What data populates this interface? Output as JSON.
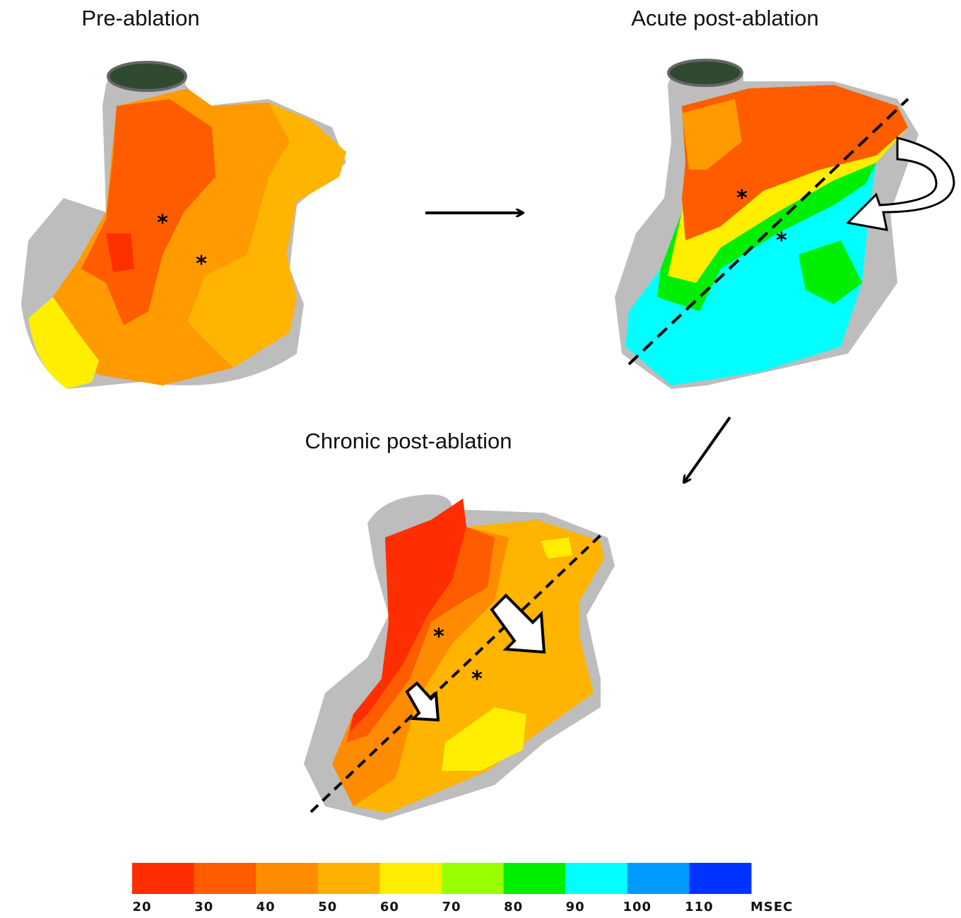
{
  "panels": [
    {
      "title": "Pre-ablation",
      "markers": [
        "*",
        "*"
      ]
    },
    {
      "title": "Acute post-ablation",
      "markers": [
        "*",
        "*"
      ]
    },
    {
      "title": "Chronic post-ablation",
      "markers": [
        "*",
        "*"
      ]
    }
  ],
  "colorbar": {
    "colors": [
      "#ff2e00",
      "#ff5c00",
      "#ff8c00",
      "#ffb000",
      "#ffee00",
      "#99ff00",
      "#00ee00",
      "#00ffff",
      "#009cff",
      "#0033ff"
    ],
    "labels": [
      20,
      30,
      40,
      50,
      60,
      70,
      80,
      90,
      100,
      110
    ],
    "unit": "MSEC"
  }
}
